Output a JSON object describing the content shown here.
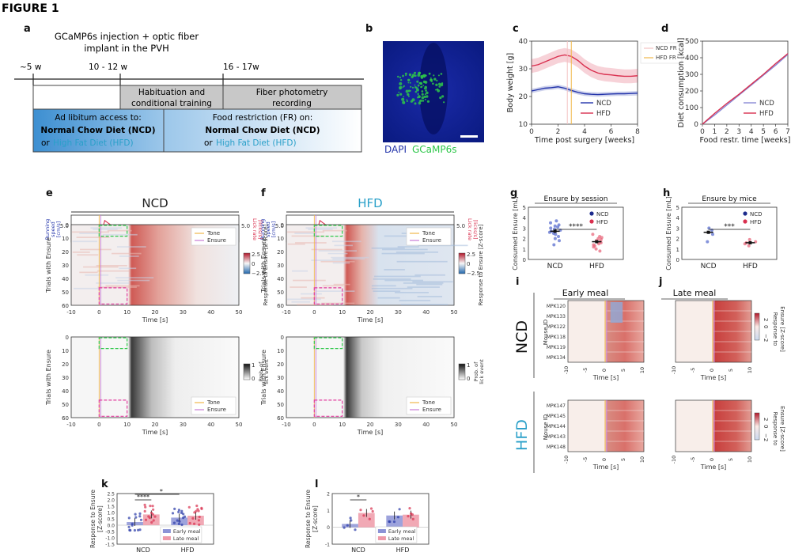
{
  "figure_label": "FIGURE 1",
  "panel_a": {
    "label": "a",
    "header": "GCaMP6s injection + optic fiber implant in the PVH",
    "header_line1": "GCaMP6s injection + optic fiber",
    "header_line2": "implant in the PVH",
    "timeline": [
      "~5 w",
      "10 - 12 w",
      "16 - 17w"
    ],
    "habituation_line1": "Habituation and",
    "habituation_line2": "conditional training",
    "photometry_line1": "Fiber photometry",
    "photometry_line2": "recording",
    "adlib_line1": "Ad libitum access to:",
    "adlib_line2": "Normal Chow Diet (NCD)",
    "adlib_or": "or",
    "adlib_line3": "High Fat Diet (HFD)",
    "fr_line1": "Food restriction (FR) on:",
    "fr_line2": "Normal Chow Diet (NCD)",
    "fr_or": "or",
    "fr_line3": "High Fat Diet (HFD)"
  },
  "panel_b": {
    "label": "b",
    "stain1": "DAPI",
    "stain2": "GCaMP6s"
  },
  "colors": {
    "ncd": "#2233aa",
    "hfd": "#d9304f",
    "hfd_text": "#2aa0c9",
    "gcamp": "#2ec74a",
    "tone": "#f0b84b",
    "ensure": "#c77bd6"
  },
  "panel_e": {
    "label": "e",
    "title": "NCD"
  },
  "panel_f": {
    "label": "f",
    "title": "HFD"
  },
  "heat_common": {
    "running_label_1": "Running",
    "running_label_2": "speed",
    "running_label_3": "[cm/s]",
    "lick_label_1": "Lick rate",
    "lick_label_2": "[licks/s]",
    "speed_tick": "5.0",
    "lick_tick": "5.0",
    "ylabel": "Trials with Ensure",
    "xlabel": "Time [s]",
    "cbar_label": "Response to Ensure [Z-score]",
    "cbar_ticks": [
      "2.5",
      "0",
      "−2.5"
    ],
    "lick_cbar_label_1": "Prob. of",
    "lick_cbar_label_2": "lick event",
    "lick_cbar_ticks": [
      "1",
      "0"
    ],
    "legend_tone": "Tone",
    "legend_ensure": "Ensure",
    "x_ticks": [
      "-10",
      "0",
      "10",
      "20",
      "30",
      "40",
      "50"
    ],
    "y_ticks": [
      "0",
      "10",
      "20",
      "30",
      "40",
      "50",
      "60"
    ]
  },
  "chart_data": [
    {
      "id": "c",
      "type": "line",
      "title": "",
      "xlabel": "Time post surgery [weeks]",
      "ylabel": "Body weight [g]",
      "xlim": [
        0,
        8
      ],
      "ylim": [
        10,
        40
      ],
      "x_ticks": [
        "0",
        "2",
        "4",
        "6",
        "8"
      ],
      "y_ticks": [
        "10",
        "20",
        "30",
        "40"
      ],
      "legend_top": [
        "NCD FR",
        "HFD FR"
      ],
      "series": [
        {
          "name": "NCD",
          "x": [
            0,
            0.5,
            1,
            1.5,
            2,
            2.5,
            3,
            3.5,
            4,
            4.5,
            5,
            5.5,
            6,
            6.5,
            7,
            7.5,
            8
          ],
          "values": [
            22,
            22.5,
            23,
            23.2,
            23.5,
            23,
            22.2,
            21.5,
            21,
            20.8,
            20.7,
            20.8,
            20.9,
            21,
            21,
            21.1,
            21.2
          ]
        },
        {
          "name": "HFD",
          "x": [
            0,
            0.5,
            1,
            1.5,
            2,
            2.5,
            3,
            3.5,
            4,
            4.5,
            5,
            5.5,
            6,
            6.5,
            7,
            7.5,
            8
          ],
          "values": [
            31,
            31.5,
            32.5,
            33.5,
            34.5,
            35,
            34.5,
            33,
            31,
            29.5,
            28.5,
            28,
            27.8,
            27.5,
            27.3,
            27.3,
            27.5
          ]
        }
      ]
    },
    {
      "id": "d",
      "type": "line",
      "title": "",
      "xlabel": "Food restr. time [weeks]",
      "ylabel": "Diet consumption [kcal]",
      "xlim": [
        0,
        7
      ],
      "ylim": [
        0,
        500
      ],
      "x_ticks": [
        "0",
        "1",
        "2",
        "3",
        "4",
        "5",
        "6",
        "7"
      ],
      "y_ticks": [
        "0",
        "100",
        "200",
        "300",
        "400",
        "500"
      ],
      "series": [
        {
          "name": "NCD",
          "x": [
            0,
            1,
            2,
            3,
            4,
            5,
            6,
            7
          ],
          "values": [
            0,
            55,
            115,
            175,
            235,
            295,
            355,
            420
          ]
        },
        {
          "name": "HFD",
          "x": [
            0,
            1,
            2,
            3,
            4,
            5,
            6,
            7
          ],
          "values": [
            0,
            65,
            125,
            180,
            240,
            300,
            365,
            425
          ]
        }
      ]
    },
    {
      "id": "g",
      "type": "scatter",
      "title": "Ensure by session",
      "ylabel": "Consumed Ensure [mL]",
      "categories": [
        "NCD",
        "HFD"
      ],
      "ylim": [
        0,
        5
      ],
      "y_ticks": [
        "0",
        "1",
        "2",
        "3",
        "4",
        "5"
      ],
      "significance": "****",
      "series": [
        {
          "name": "NCD",
          "mean": 2.7,
          "points": [
            1.4,
            1.8,
            2.0,
            2.2,
            2.4,
            2.5,
            2.6,
            2.7,
            2.8,
            2.9,
            3.0,
            3.1,
            3.2,
            3.3,
            3.5,
            3.7
          ]
        },
        {
          "name": "HFD",
          "mean": 1.7,
          "points": [
            0.8,
            1.0,
            1.2,
            1.3,
            1.4,
            1.5,
            1.6,
            1.7,
            1.8,
            1.9,
            2.0,
            2.1,
            2.2,
            2.4
          ]
        }
      ]
    },
    {
      "id": "h",
      "type": "scatter",
      "title": "Ensure by mice",
      "ylabel": "Consumed Ensure [mL]",
      "categories": [
        "NCD",
        "HFD"
      ],
      "ylim": [
        0,
        5
      ],
      "y_ticks": [
        "0",
        "1",
        "2",
        "3",
        "4",
        "5"
      ],
      "significance": "***",
      "series": [
        {
          "name": "NCD",
          "mean": 2.6,
          "points": [
            1.7,
            2.4,
            2.6,
            2.8,
            3.0
          ]
        },
        {
          "name": "HFD",
          "mean": 1.6,
          "points": [
            1.3,
            1.5,
            1.6,
            1.7,
            1.9
          ]
        }
      ]
    },
    {
      "id": "i",
      "type": "heatmap",
      "title": "Early meal",
      "xlabel": "Time [s]",
      "ylabel": "Mouse ID",
      "x_ticks": [
        "-10",
        "-5",
        "0",
        "5",
        "10"
      ],
      "rows_ncd": [
        "MPK120",
        "MPK133",
        "MPK122",
        "MPK118",
        "MPK119",
        "MPK134"
      ],
      "rows_hfd": [
        "MPK147",
        "MPK145",
        "MPK144",
        "MPK143",
        "MPK148"
      ]
    },
    {
      "id": "j",
      "type": "heatmap",
      "title": "Late meal",
      "xlabel": "Time [s]",
      "x_ticks": [
        "-10",
        "-5",
        "0",
        "5",
        "10"
      ],
      "cbar_label_1": "Response to",
      "cbar_label_2": "Ensure [Z-score]",
      "cbar_ticks": [
        "2",
        "0",
        "−2"
      ]
    },
    {
      "id": "k",
      "type": "bar",
      "title": "",
      "ylabel": "Response to Ensure [Z-score]",
      "ylabel_1": "Response to Ensure",
      "ylabel_2": "[Z-score]",
      "categories": [
        "NCD",
        "HFD"
      ],
      "ylim": [
        -1.5,
        2.5
      ],
      "y_ticks": [
        "-1.5",
        "-1.0",
        "-0.5",
        "0.0",
        "0.5",
        "1.0",
        "1.5",
        "2.0",
        "2.5"
      ],
      "significance": [
        "****",
        "*"
      ],
      "series": [
        {
          "name": "Early meal",
          "values": [
            0.25,
            0.6
          ]
        },
        {
          "name": "Late meal",
          "values": [
            0.85,
            0.75
          ]
        }
      ]
    },
    {
      "id": "l",
      "type": "bar",
      "title": "",
      "ylabel_1": "Response to Ensure",
      "ylabel_2": "[Z-score]",
      "categories": [
        "NCD",
        "HFD"
      ],
      "ylim": [
        -1,
        2
      ],
      "y_ticks": [
        "-1",
        "0",
        "1",
        "2"
      ],
      "significance": [
        "*"
      ],
      "series": [
        {
          "name": "Early meal",
          "values": [
            0.2,
            0.7
          ]
        },
        {
          "name": "Late meal",
          "values": [
            0.85,
            0.75
          ]
        }
      ]
    }
  ],
  "labels": {
    "c": "c",
    "d": "d",
    "g": "g",
    "h": "h",
    "i": "i",
    "j": "j",
    "k": "k",
    "l": "l",
    "row_ncd": "NCD",
    "row_hfd": "HFD",
    "legend_ncd": "NCD",
    "legend_hfd": "HFD",
    "legend_early": "Early meal",
    "legend_late": "Late meal"
  }
}
